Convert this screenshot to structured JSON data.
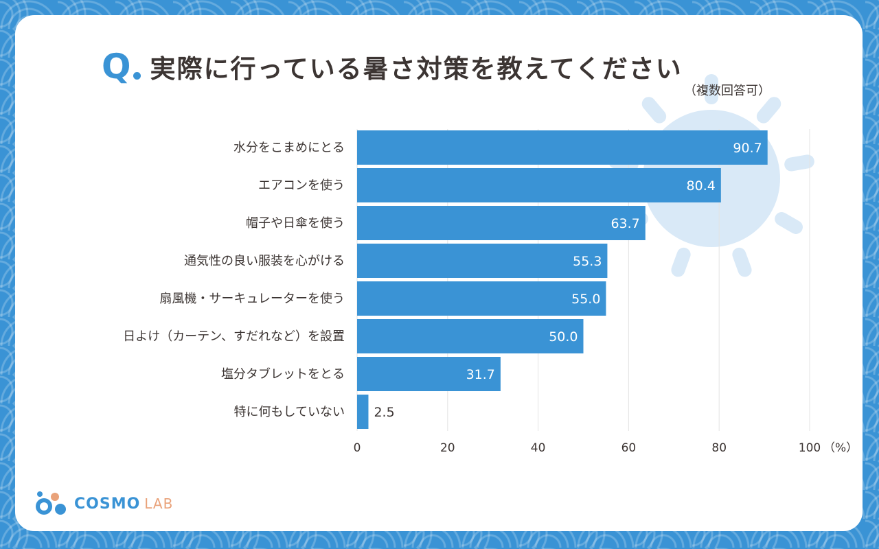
{
  "header": {
    "q_label": "Q",
    "title": "実際に行っている暑さ対策を教えてください",
    "subtitle": "（複数回答可）"
  },
  "logo": {
    "part_a": "COSMO",
    "part_b": "LAB"
  },
  "colors": {
    "background": "#3a93d5",
    "bar": "#3a93d5",
    "text": "#3c3533",
    "sun": "#d9e9f7"
  },
  "chart_data": {
    "type": "bar",
    "orientation": "horizontal",
    "categories": [
      "水分をこまめにとる",
      "エアコンを使う",
      "帽子や日傘を使う",
      "通気性の良い服装を心がける",
      "扇風機・サーキュレーターを使う",
      "日よけ（カーテン、すだれなど）を設置",
      "塩分タブレットをとる",
      "特に何もしていない"
    ],
    "values": [
      90.7,
      80.4,
      63.7,
      55.3,
      55.0,
      50.0,
      31.7,
      2.5
    ],
    "value_labels": [
      "90.7",
      "80.4",
      "63.7",
      "55.3",
      "55.0",
      "50.0",
      "31.7",
      "2.5"
    ],
    "xlim": [
      0,
      100
    ],
    "xticks": [
      0,
      20,
      40,
      60,
      80,
      100
    ],
    "xtick_labels": [
      "0",
      "20",
      "40",
      "60",
      "80",
      "100"
    ],
    "unit": "（%）",
    "grid": true
  }
}
